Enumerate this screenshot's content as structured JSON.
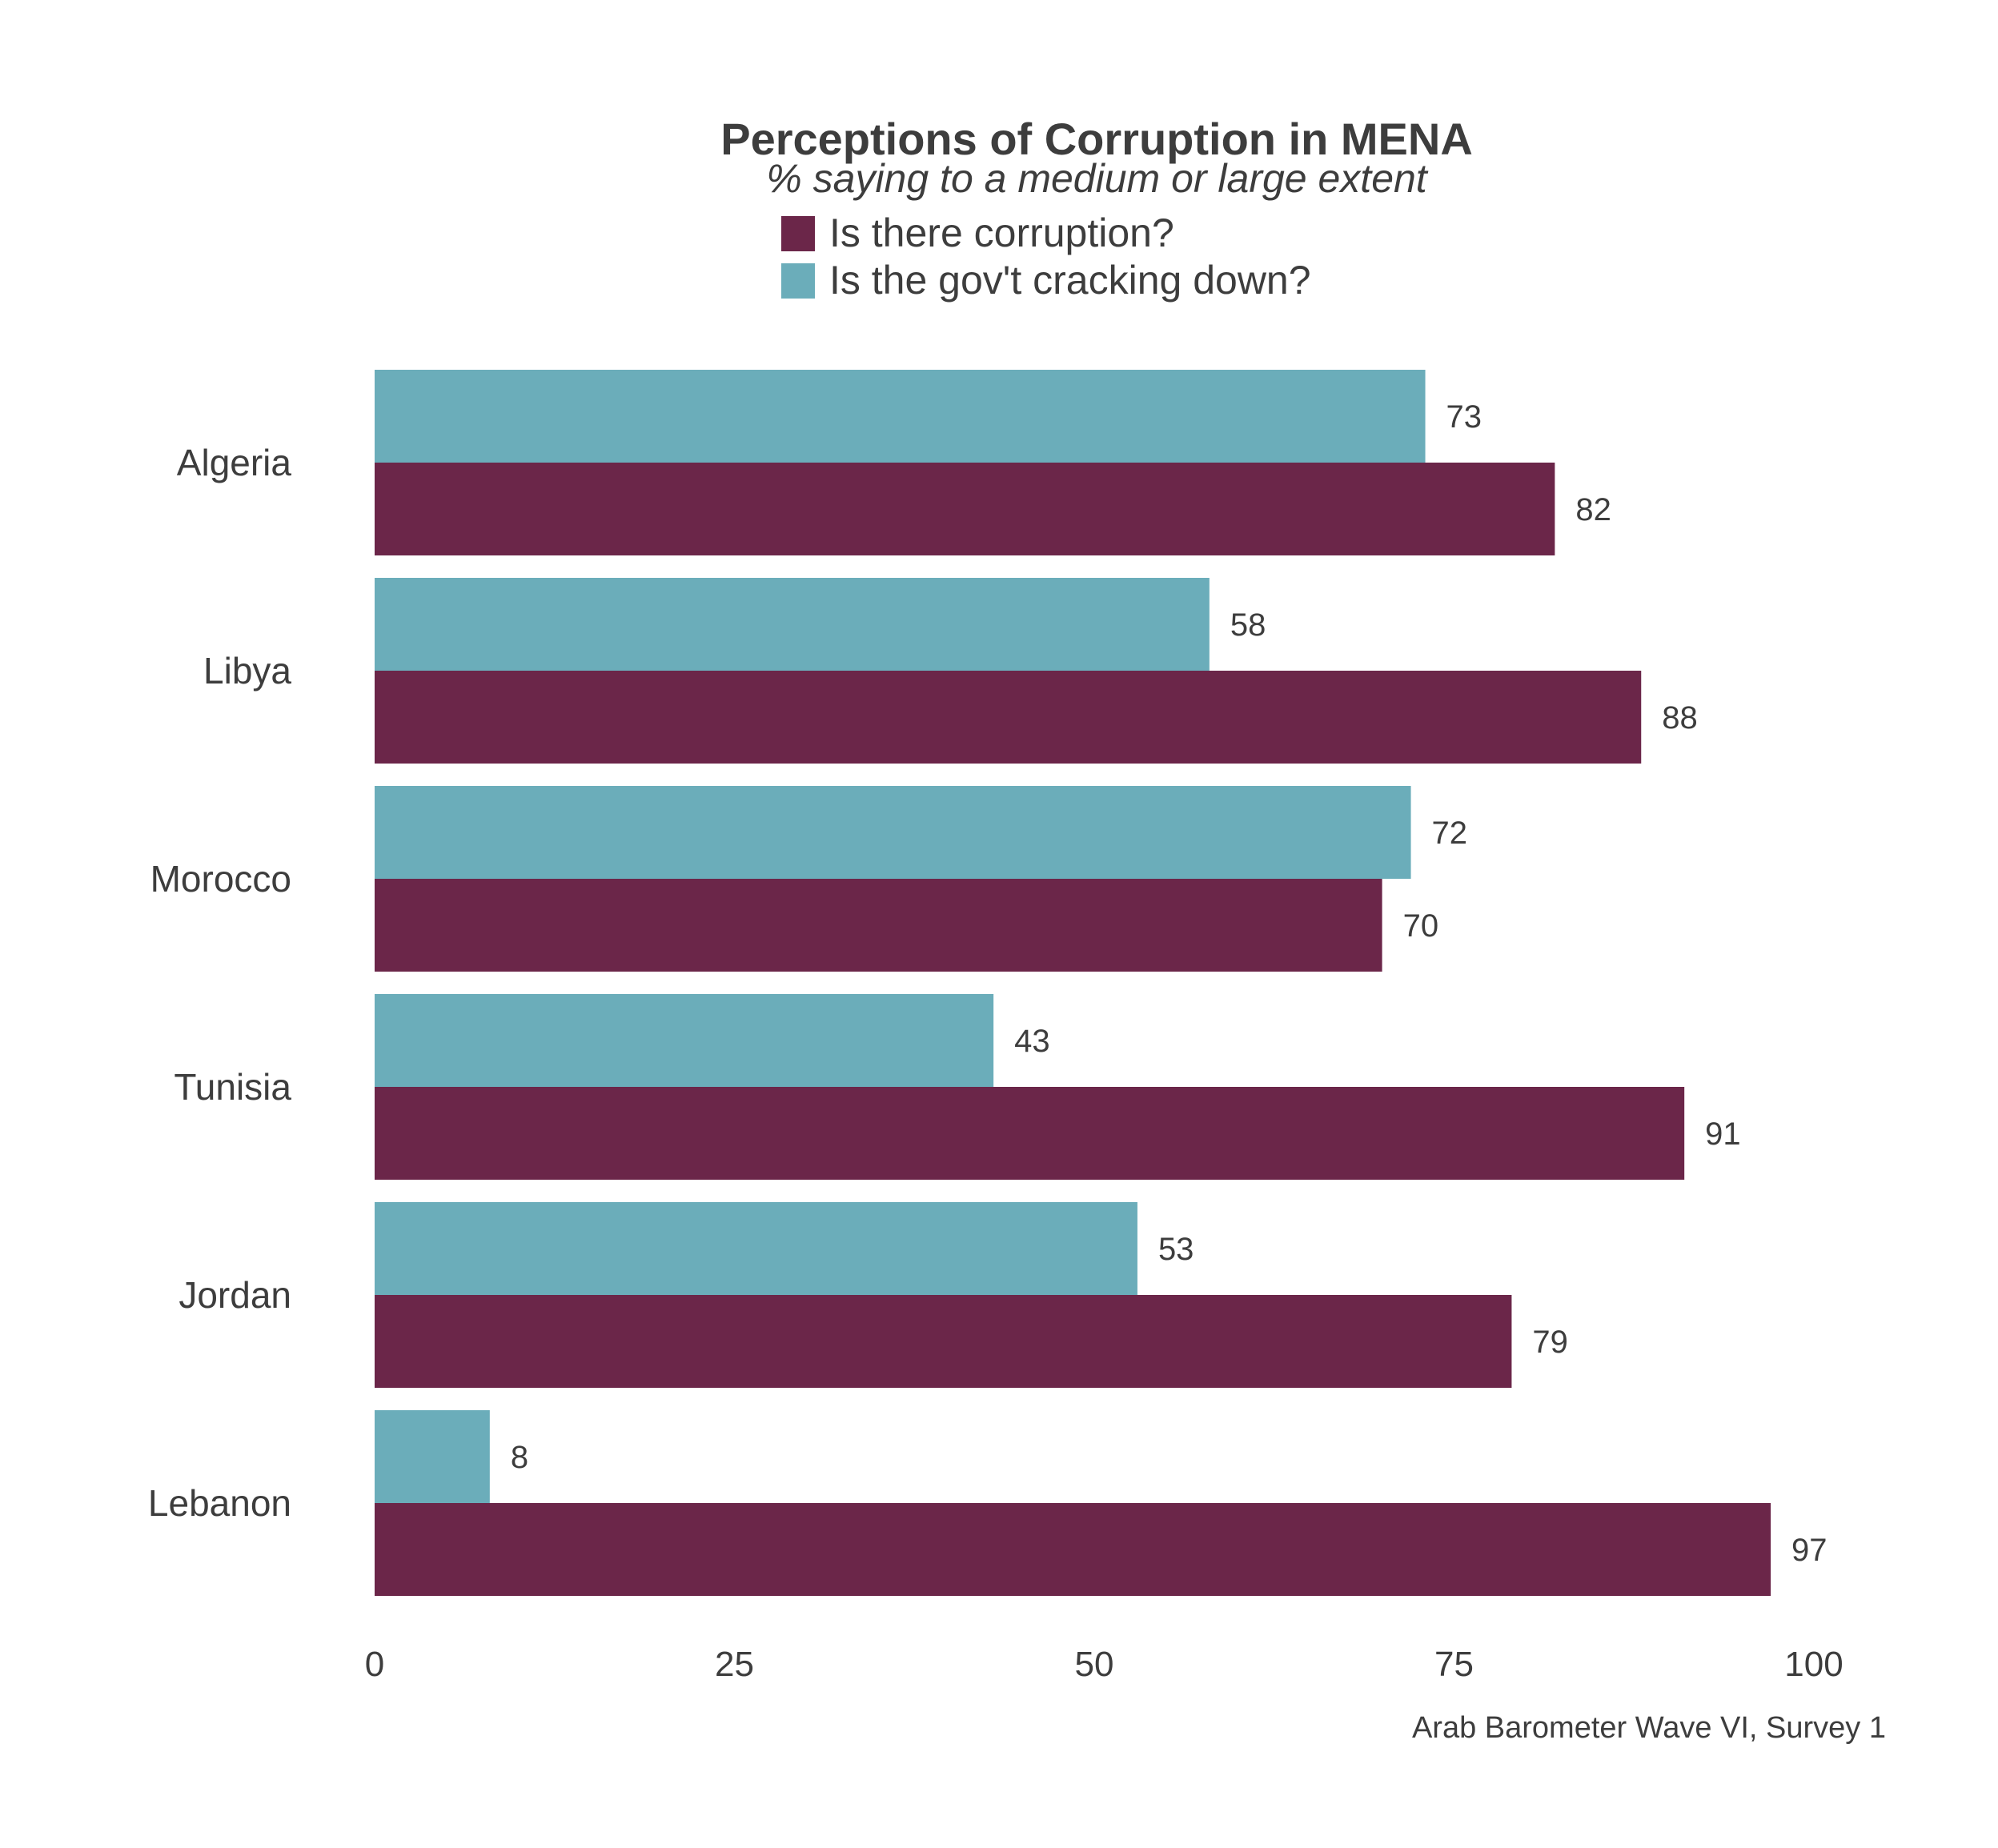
{
  "chart_data": {
    "type": "bar",
    "orientation": "horizontal",
    "title": "Perceptions of Corruption in MENA",
    "subtitle": "% saying to a medium or large extent",
    "categories": [
      "Algeria",
      "Libya",
      "Morocco",
      "Tunisia",
      "Jordan",
      "Lebanon"
    ],
    "series": [
      {
        "name": "Is there corruption?",
        "color": "#6b2649",
        "values": [
          82,
          88,
          70,
          91,
          79,
          97
        ]
      },
      {
        "name": "Is the gov't cracking down?",
        "color": "#6badba",
        "values": [
          73,
          58,
          72,
          43,
          53,
          8
        ]
      }
    ],
    "xlim": [
      0,
      100
    ],
    "xticks": [
      0,
      25,
      50,
      75,
      100
    ],
    "grid": false,
    "legend_position": "top",
    "caption": "Arab Barometer Wave VI, Survey 1"
  }
}
